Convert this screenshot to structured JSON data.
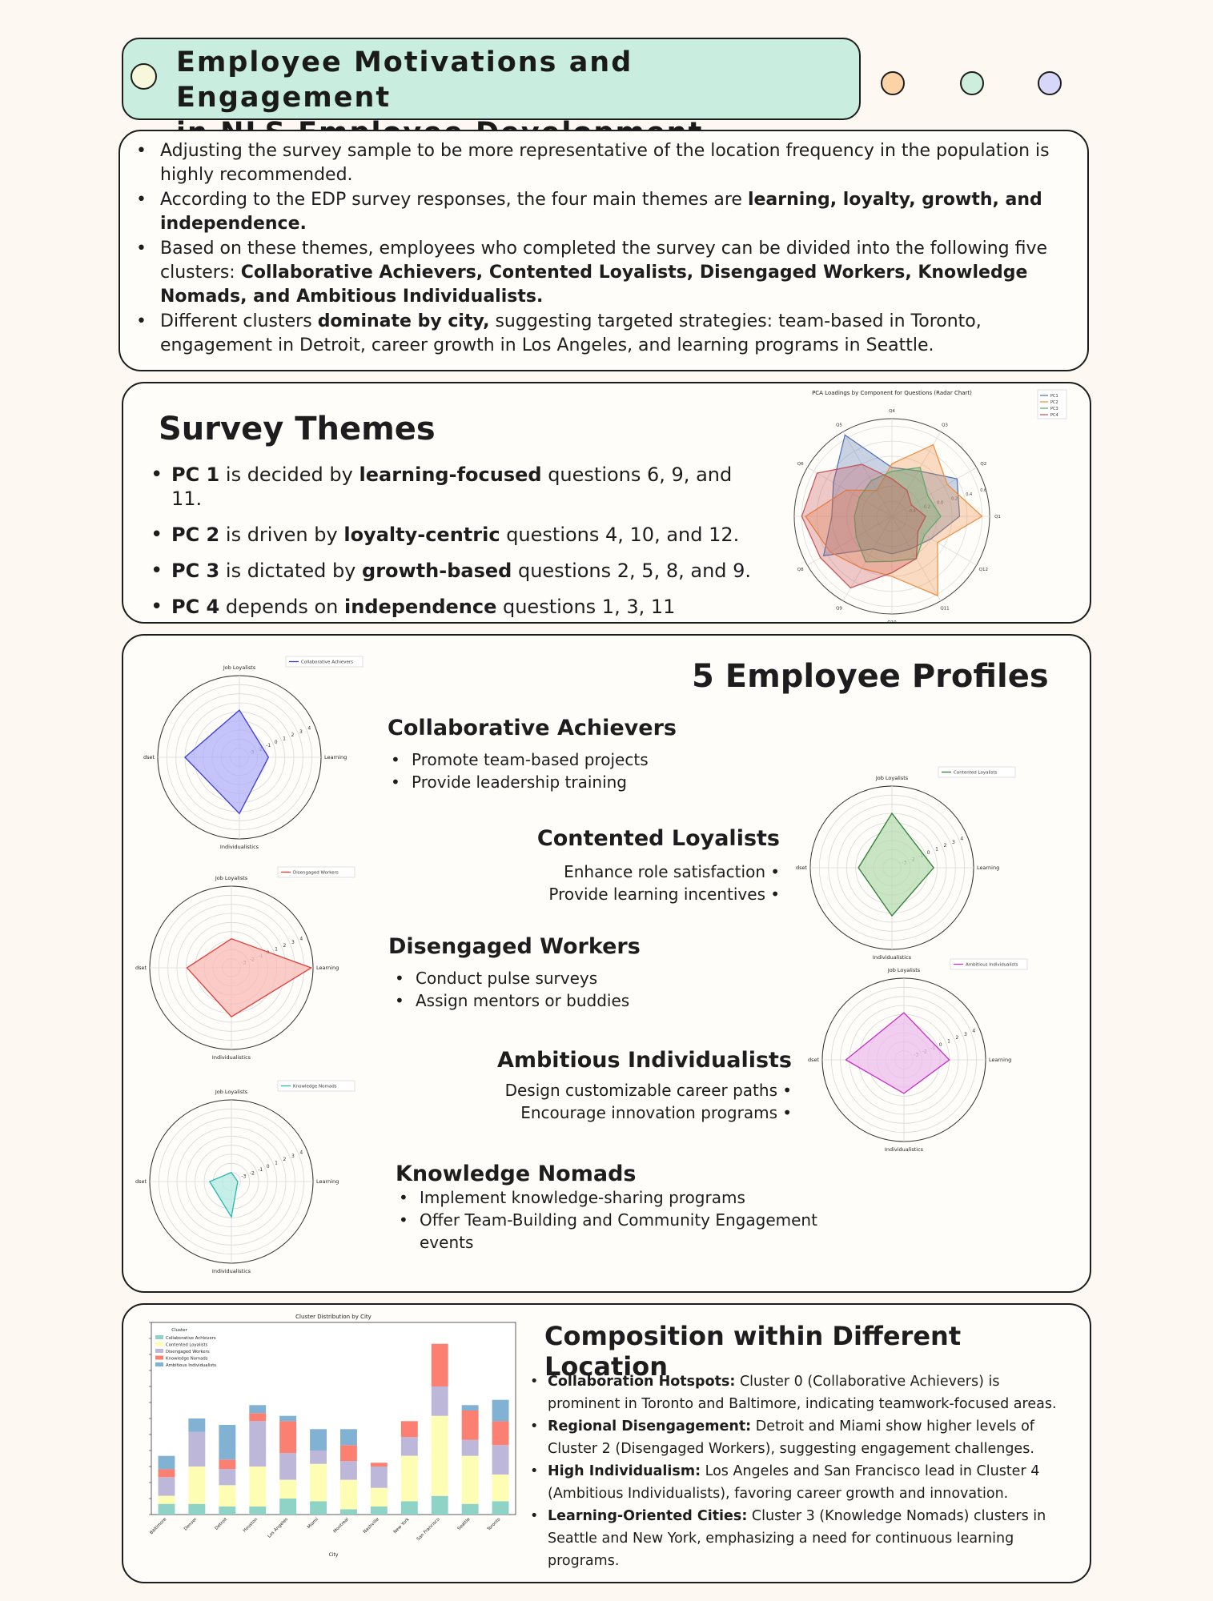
{
  "header": {
    "title_line1": "Employee Motivations and Engagement",
    "title_line2": "in NLS Employee Development Program"
  },
  "colors": {
    "title_bg": "#c9eedf",
    "dot_orange": "#fbd3a6",
    "dot_mint": "#cdeedd",
    "dot_lavender": "#d7d7fa",
    "dot_cream": "#f7f7dc"
  },
  "intro": {
    "items": [
      {
        "parts": [
          {
            "t": "Adjusting the survey sample to be more representative of the location frequency in the population is highly recommended.",
            "b": false
          }
        ]
      },
      {
        "parts": [
          {
            "t": "According to the EDP survey responses, the four main themes are ",
            "b": false
          },
          {
            "t": "learning, loyalty, growth, and independence.",
            "b": true
          }
        ]
      },
      {
        "parts": [
          {
            "t": "Based on these themes, employees who completed the survey can be divided into the following five clusters:   ",
            "b": false
          },
          {
            "t": "Collaborative Achievers, Contented Loyalists, Disengaged Workers, Knowledge Nomads, and Ambitious Individualists.",
            "b": true
          }
        ]
      },
      {
        "parts": [
          {
            "t": "Different clusters ",
            "b": false
          },
          {
            "t": "dominate by city,",
            "b": true
          },
          {
            "t": " suggesting targeted strategies: team-based in Toronto, engagement in Detroit, career growth in Los Angeles, and learning programs in Seattle.",
            "b": false
          }
        ]
      }
    ]
  },
  "themes": {
    "title": "Survey Themes",
    "items": [
      {
        "parts": [
          {
            "t": "PC 1",
            "b": true
          },
          {
            "t": " is decided by ",
            "b": false
          },
          {
            "t": "learning-focused",
            "b": true
          },
          {
            "t": " questions 6, 9, and 11.",
            "b": false
          }
        ]
      },
      {
        "parts": [
          {
            "t": "PC 2",
            "b": true
          },
          {
            "t": "  is driven by ",
            "b": false
          },
          {
            "t": "loyalty-centric",
            "b": true
          },
          {
            "t": " questions 4, 10, and 12.",
            "b": false
          }
        ]
      },
      {
        "parts": [
          {
            "t": "PC 3",
            "b": true
          },
          {
            "t": " is dictated by ",
            "b": false
          },
          {
            "t": "growth-based",
            "b": true
          },
          {
            "t": " questions 2, 5, 8, and 9.",
            "b": false
          }
        ]
      },
      {
        "parts": [
          {
            "t": "PC 4",
            "b": true
          },
          {
            "t": " depends on ",
            "b": false
          },
          {
            "t": "independence",
            "b": true
          },
          {
            "t": " questions 1, 3, 11",
            "b": false
          }
        ]
      }
    ]
  },
  "pca_chart": {
    "title": "PCA Loadings by Component for Questions (Radar Chart)",
    "axes": [
      "Q4",
      "Q3",
      "Q2",
      "Q1",
      "Q12",
      "Q11",
      "Q10",
      "Q9",
      "Q8",
      "Q7",
      "Q6",
      "Q5"
    ],
    "rticks": [
      "-0.4",
      "-0.2",
      "0.0",
      "0.2",
      "0.4",
      "0.6"
    ],
    "series": [
      {
        "name": "PC1",
        "color": "#4c72b0",
        "values": [
          0.05,
          0.1,
          0.4,
          0.3,
          0.0,
          -0.1,
          -0.1,
          -0.1,
          0.45,
          0.2,
          0.3,
          0.65
        ]
      },
      {
        "name": "PC2",
        "color": "#f08c3c",
        "values": [
          0.1,
          0.5,
          0.25,
          0.6,
          0.1,
          0.62,
          0.2,
          0.2,
          0.35,
          0.55,
          0.1,
          -0.2
        ]
      },
      {
        "name": "PC3",
        "color": "#55a868",
        "values": [
          0.0,
          0.15,
          -0.05,
          0.05,
          -0.1,
          0.05,
          0.0,
          0.1,
          -0.05,
          -0.1,
          -0.1,
          -0.05
        ]
      },
      {
        "name": "PC4",
        "color": "#c44e52",
        "values": [
          -0.1,
          -0.2,
          -0.3,
          -0.15,
          -0.2,
          0.05,
          0.15,
          0.5,
          0.5,
          0.6,
          0.55,
          0.2
        ]
      }
    ],
    "legend": [
      "PC1",
      "PC2",
      "PC3",
      "PC4"
    ]
  },
  "profiles": {
    "title": "5 Employee Profiles",
    "axis_labels": {
      "top": "Job Loyalists",
      "left": "Growth Mindset",
      "right": "Learning",
      "bottom": "Individualistics"
    },
    "rticks": [
      "-3",
      "-2",
      "-1",
      "0",
      "1",
      "2",
      "3",
      "4"
    ],
    "list": [
      {
        "name": "Collaborative Achievers",
        "color": "#3b3bdb",
        "fill": "#b0b0fa",
        "values": {
          "top": 1.2,
          "right": -0.8,
          "bottom": 2.2,
          "left": 2.0
        },
        "bullets": [
          "Promote team-based projects",
          "Provide leadership training"
        ]
      },
      {
        "name": "Contented Loyalists",
        "color": "#2e7d32",
        "fill": "#b7dcb1",
        "values": {
          "top": 2.0,
          "right": 0.6,
          "bottom": 1.3,
          "left": -0.3
        },
        "bullets": [
          "Enhance role satisfaction",
          "Provide learning incentives"
        ]
      },
      {
        "name": "Disengaged Workers",
        "color": "#e53935",
        "fill": "#f9b9b5",
        "values": {
          "top": -0.8,
          "right": 4.8,
          "bottom": 1.4,
          "left": 0.9
        },
        "bullets": [
          "Conduct pulse surveys",
          "Assign mentors or buddies"
        ]
      },
      {
        "name": "Ambitious Individualists",
        "color": "#c62ec6",
        "fill": "#ecbdec",
        "values": {
          "top": 1.2,
          "right": 1.0,
          "bottom": -0.3,
          "left": 2.4
        },
        "bullets": [
          "Design customizable career paths",
          "Encourage innovation programs"
        ]
      },
      {
        "name": "Knowledge Nomads",
        "color": "#26b8b0",
        "fill": "#b4e9e4",
        "values": {
          "top": -3.0,
          "right": -3.3,
          "bottom": -0.1,
          "left": -1.6
        },
        "bullets": [
          "Implement knowledge-sharing programs",
          "Offer Team-Building and  Community Engagement events"
        ]
      }
    ]
  },
  "composition": {
    "title": "Composition within Different Location",
    "items": [
      {
        "parts": [
          {
            "t": "Collaboration Hotspots:",
            "b": true
          },
          {
            "t": " Cluster 0 (Collaborative Achievers) is prominent in Toronto and Baltimore, indicating teamwork-focused areas.",
            "b": false
          }
        ]
      },
      {
        "parts": [
          {
            "t": "Regional Disengagement:",
            "b": true
          },
          {
            "t": " Detroit and Miami show higher levels of Cluster 2 (Disengaged Workers), suggesting engagement challenges.",
            "b": false
          }
        ]
      },
      {
        "parts": [
          {
            "t": "High Individualism:",
            "b": true
          },
          {
            "t": " Los Angeles and San Francisco lead in Cluster 4 (Ambitious Individualists), favoring career growth and innovation.",
            "b": false
          }
        ]
      },
      {
        "parts": [
          {
            "t": "Learning-Oriented Cities:",
            "b": true
          },
          {
            "t": " Cluster 3 (Knowledge Nomads) clusters in Seattle and New York, emphasizing a need for continuous learning programs.",
            "b": false
          }
        ]
      }
    ]
  },
  "chart_data": {
    "type": "bar",
    "stacked": true,
    "title": "Cluster Distribution by City",
    "xlabel": "City",
    "ylabel": "",
    "legend_title": "Cluster",
    "legend_position": "top-left",
    "ylim": [
      0,
      36
    ],
    "categories": [
      "Baltimore",
      "Denver",
      "Detroit",
      "Houston",
      "Los Angeles",
      "Miami",
      "Montreal",
      "Nashville",
      "New York",
      "San Francisco",
      "Seattle",
      "Toronto"
    ],
    "series": [
      {
        "name": "Collaborative Achievers",
        "color": "#8fd3c7",
        "values": [
          2,
          2,
          1.5,
          1.5,
          3,
          2.5,
          1,
          1.5,
          2.5,
          3.5,
          2,
          2.5
        ]
      },
      {
        "name": "Contented Loyalists",
        "color": "#fdfdb3",
        "values": [
          1.5,
          7,
          4,
          7.5,
          3.5,
          7,
          5.5,
          3.5,
          8.5,
          15,
          9,
          5
        ]
      },
      {
        "name": "Disengaged Workers",
        "color": "#bdb8da",
        "values": [
          3.5,
          6.5,
          3,
          8.5,
          5,
          2.5,
          3.5,
          4,
          3.5,
          5.5,
          3,
          5.5
        ]
      },
      {
        "name": "Knowledge Nomads",
        "color": "#fb8071",
        "values": [
          1.5,
          0,
          1.8,
          1.5,
          6,
          0,
          3,
          0.7,
          3,
          8,
          5.5,
          4.5
        ]
      },
      {
        "name": "Ambitious Individualists",
        "color": "#81b1d3",
        "values": [
          2.5,
          2.5,
          6.5,
          1.5,
          1,
          4,
          3,
          0,
          0,
          0,
          1,
          4
        ]
      }
    ]
  }
}
